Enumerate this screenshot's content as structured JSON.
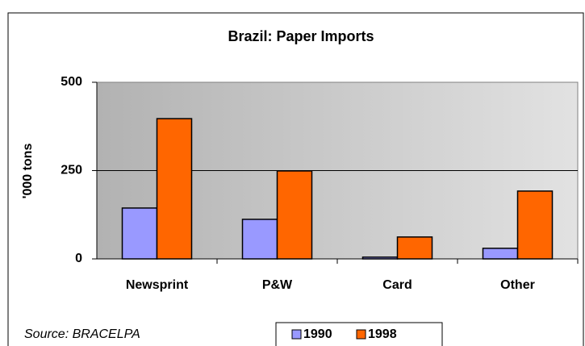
{
  "chart_data": {
    "type": "bar",
    "title": "Brazil: Paper Imports",
    "y_label": "'000 tons",
    "categories": [
      "Newsprint",
      "P&W",
      "Card",
      "Other"
    ],
    "series": [
      {
        "name": "1990",
        "color": "#9999ff",
        "values": [
          144,
          112,
          5,
          30
        ]
      },
      {
        "name": "1998",
        "color": "#ff6600",
        "values": [
          397,
          249,
          62,
          192
        ]
      }
    ],
    "ylim": [
      0,
      500
    ],
    "yticks": [
      0,
      250,
      500
    ],
    "grid": true,
    "source": "Source: BRACELPA"
  }
}
